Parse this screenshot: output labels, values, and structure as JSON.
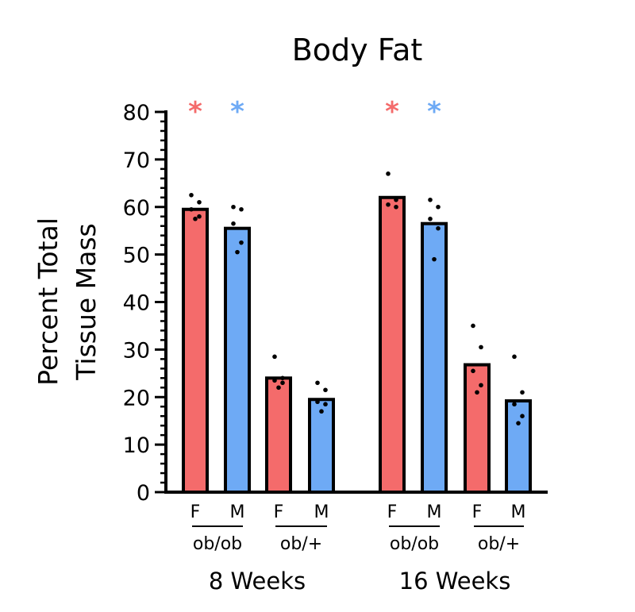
{
  "chart_data": {
    "type": "bar",
    "title": "Body Fat",
    "ylabel": [
      "Percent Total",
      "Tissue Mass"
    ],
    "ylim": [
      0,
      80
    ],
    "yticks": [
      0,
      10,
      20,
      30,
      40,
      50,
      60,
      70,
      80
    ],
    "minor_tick_step": 2,
    "colors": {
      "F": "#f46b6b",
      "M": "#6eaaf5",
      "axis": "#000000",
      "points": "#000000"
    },
    "groups": [
      {
        "age": "8 Weeks",
        "genotypes": [
          {
            "label": "ob/ob",
            "bars": [
              {
                "sex": "F",
                "value": 59.5,
                "points": [
                  62.5,
                  61.0,
                  59.5,
                  58.0,
                  57.5
                ],
                "significance": "*"
              },
              {
                "sex": "M",
                "value": 55.5,
                "points": [
                  60.0,
                  59.5,
                  56.5,
                  52.5,
                  50.5
                ],
                "significance": "*"
              }
            ]
          },
          {
            "label": "ob/+",
            "bars": [
              {
                "sex": "F",
                "value": 24.0,
                "points": [
                  28.5,
                  24.0,
                  23.5,
                  23.0,
                  22.0
                ],
                "significance": ""
              },
              {
                "sex": "M",
                "value": 19.5,
                "points": [
                  23.0,
                  21.5,
                  19.0,
                  18.5,
                  17.0
                ],
                "significance": ""
              }
            ]
          }
        ]
      },
      {
        "age": "16 Weeks",
        "genotypes": [
          {
            "label": "ob/ob",
            "bars": [
              {
                "sex": "F",
                "value": 62.0,
                "points": [
                  67.0,
                  61.5,
                  60.5,
                  60.0
                ],
                "significance": "*"
              },
              {
                "sex": "M",
                "value": 56.5,
                "points": [
                  61.5,
                  60.0,
                  57.5,
                  55.5,
                  49.0
                ],
                "significance": "*"
              }
            ]
          },
          {
            "label": "ob/+",
            "bars": [
              {
                "sex": "F",
                "value": 26.8,
                "points": [
                  35.0,
                  30.5,
                  25.5,
                  22.5,
                  21.0
                ],
                "significance": ""
              },
              {
                "sex": "M",
                "value": 19.2,
                "points": [
                  28.5,
                  21.0,
                  18.5,
                  16.0,
                  14.5
                ],
                "significance": ""
              }
            ]
          }
        ]
      }
    ]
  }
}
